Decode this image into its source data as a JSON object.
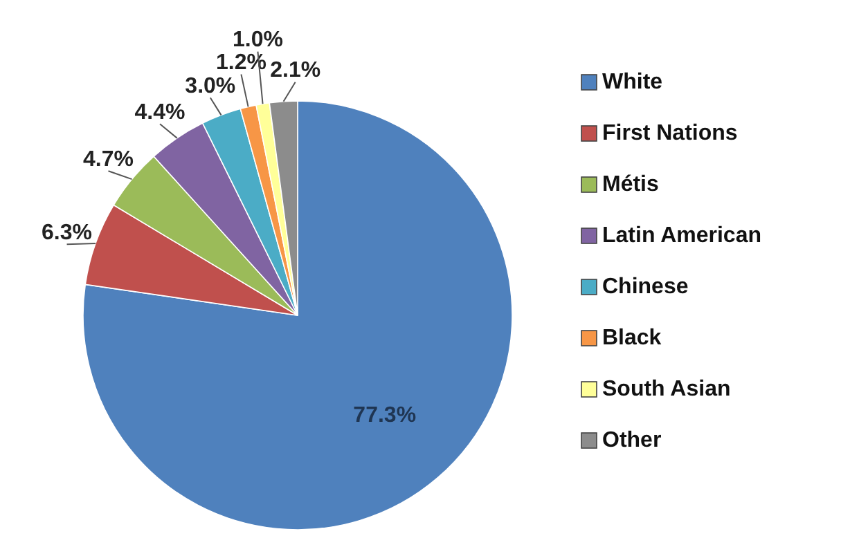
{
  "chart_data": {
    "type": "pie",
    "categories": [
      "White",
      "First Nations",
      "Métis",
      "Latin American",
      "Chinese",
      "Black",
      "South Asian",
      "Other"
    ],
    "values": [
      77.3,
      6.3,
      4.7,
      4.4,
      3.0,
      1.2,
      1.0,
      2.1
    ],
    "value_labels": [
      "77.3%",
      "6.3%",
      "4.7%",
      "4.4%",
      "3.0%",
      "1.2%",
      "1.0%",
      "2.1%"
    ],
    "colors": [
      "#4f81bd",
      "#c0504d",
      "#9bbb59",
      "#8064a2",
      "#4bacc6",
      "#f79646",
      "#ffff99",
      "#8c8c8c"
    ],
    "legend": "right"
  }
}
